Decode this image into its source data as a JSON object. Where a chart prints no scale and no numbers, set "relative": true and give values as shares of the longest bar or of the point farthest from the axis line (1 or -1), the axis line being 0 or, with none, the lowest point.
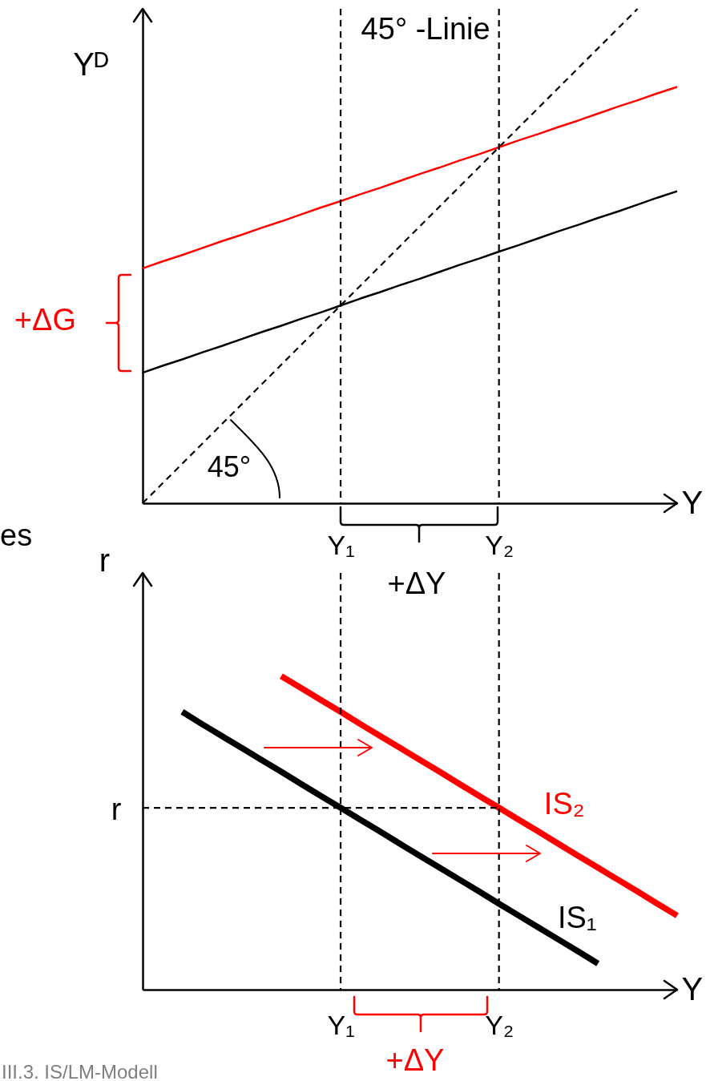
{
  "chart_data": [
    {
      "type": "line",
      "xlabel": "Y",
      "ylabel": "Yᴰ",
      "relative": true,
      "categories": [
        null,
        null,
        null,
        null,
        null,
        null,
        null,
        null,
        null,
        null,
        "Y₁",
        null,
        null,
        null,
        null,
        null,
        null,
        null,
        "Y₂",
        null,
        null,
        null,
        null,
        null,
        null,
        null,
        null,
        null
      ],
      "series": [
        {
          "name": "45° -Linie",
          "color": "#000000",
          "line_style": "dashed",
          "values": [
            0,
            0.04,
            0.08,
            0.12,
            0.16,
            0.2,
            0.24,
            0.28,
            0.32,
            0.36,
            0.4,
            0.44,
            0.48,
            0.52,
            0.56,
            0.6,
            0.64,
            0.68,
            0.72,
            0.76,
            0.8,
            0.84,
            0.88,
            0.92,
            0.96,
            1,
            null,
            null
          ]
        },
        {
          "color": "#000000",
          "values": [
            0.264,
            0.278,
            0.291,
            0.305,
            0.318,
            0.332,
            0.346,
            0.359,
            0.373,
            0.386,
            0.4,
            0.414,
            0.427,
            0.441,
            0.454,
            0.468,
            0.482,
            0.495,
            0.509,
            0.522,
            0.536,
            0.55,
            0.563,
            0.577,
            0.59,
            0.604,
            0.618,
            0.631
          ]
        },
        {
          "color": "#ff0000",
          "values": [
            0.475,
            0.489,
            0.502,
            0.516,
            0.53,
            0.543,
            0.557,
            0.57,
            0.584,
            0.598,
            0.611,
            0.625,
            0.638,
            0.652,
            0.666,
            0.679,
            0.693,
            0.706,
            0.72,
            0.734,
            0.747,
            0.761,
            0.774,
            0.788,
            0.802,
            0.815,
            0.829,
            0.842
          ]
        }
      ],
      "ref_lines": [
        {
          "axis": "x",
          "value": "Y₁",
          "color": "#000000",
          "line_style": "dashed"
        },
        {
          "axis": "x",
          "value": "Y₂",
          "color": "#000000",
          "line_style": "dashed"
        }
      ],
      "annotations": [
        "45°",
        "+ΔG",
        "+ΔY"
      ]
    },
    {
      "type": "line",
      "xlabel": "Y",
      "ylabel": "r",
      "relative": true,
      "categories": [
        null,
        null,
        null,
        null,
        null,
        null,
        null,
        null,
        null,
        null,
        "Y₁",
        null,
        null,
        null,
        null,
        null,
        null,
        null,
        "Y₂",
        null,
        null,
        null,
        null,
        null,
        null,
        null,
        null,
        null
      ],
      "series": [
        {
          "name": "IS₁",
          "color": "#000000",
          "values": [
            null,
            null,
            0.886,
            0.847,
            0.809,
            0.771,
            0.733,
            0.695,
            0.656,
            0.618,
            0.58,
            0.542,
            0.504,
            0.465,
            0.427,
            0.389,
            0.351,
            0.313,
            0.274,
            0.236,
            0.198,
            0.16,
            0.122,
            0.083,
            null,
            null,
            null,
            null
          ]
        },
        {
          "name": "IS₂",
          "color": "#ff0000",
          "values": [
            null,
            null,
            null,
            null,
            null,
            null,
            null,
            1,
            0.962,
            0.924,
            0.886,
            0.847,
            0.809,
            0.771,
            0.733,
            0.695,
            0.656,
            0.618,
            0.58,
            0.542,
            0.504,
            0.465,
            0.427,
            0.389,
            0.351,
            0.313,
            0.274,
            0.236
          ]
        },
        {
          "name": "r",
          "color": "#000000",
          "line_style": "dashed",
          "values": [
            0.58,
            0.58,
            0.58,
            0.58,
            0.58,
            0.58,
            0.58,
            0.58,
            0.58,
            0.58,
            0.58,
            0.58,
            0.58,
            0.58,
            0.58,
            0.58,
            0.58,
            0.58,
            0.58,
            null,
            null,
            null,
            null,
            null,
            null,
            null,
            null,
            null
          ]
        }
      ],
      "ref_lines": [
        {
          "axis": "x",
          "value": "Y₁",
          "color": "#000000",
          "line_style": "dashed"
        },
        {
          "axis": "x",
          "value": "Y₂",
          "color": "#000000",
          "line_style": "dashed"
        }
      ],
      "annotations": [
        "+ΔY",
        "es",
        "III.3. IS/LM-Modell"
      ]
    }
  ]
}
